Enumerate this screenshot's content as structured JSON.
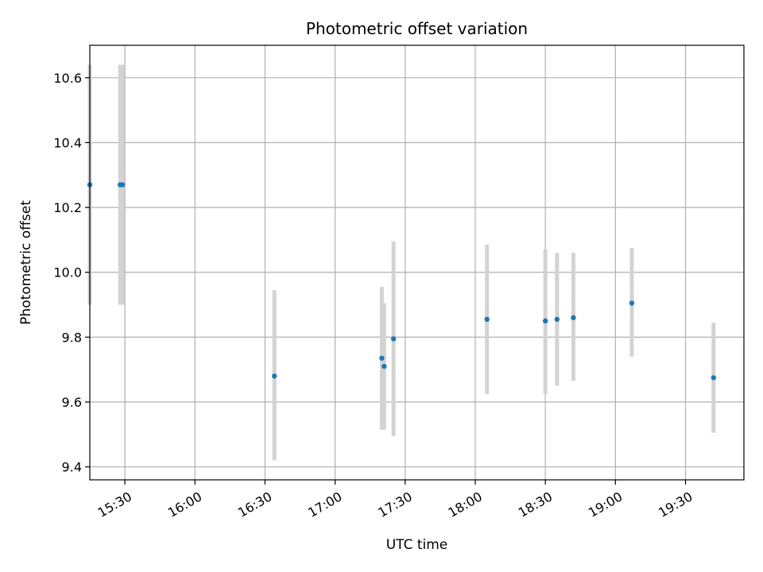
{
  "chart_data": {
    "type": "scatter",
    "title": "Photometric offset variation",
    "xlabel": "UTC time",
    "ylabel": "Photometric offset",
    "grid": true,
    "xlim": [
      "15:15",
      "19:55"
    ],
    "ylim": [
      9.36,
      10.7
    ],
    "x_ticks": [
      "15:30",
      "16:00",
      "16:30",
      "17:00",
      "17:30",
      "18:00",
      "18:30",
      "19:00",
      "19:30"
    ],
    "y_ticks": [
      "9.4",
      "9.6",
      "9.8",
      "10.0",
      "10.2",
      "10.4",
      "10.6"
    ],
    "colors": {
      "point": "#1f77b4",
      "errorbar": "#d3d3d3",
      "grid": "#b0b0b0"
    },
    "series": [
      {
        "points": [
          {
            "x": "15:15",
            "y": 10.27,
            "ylow": 9.9,
            "yhigh": 10.64
          },
          {
            "x": "15:28",
            "y": 10.27,
            "ylow": 9.9,
            "yhigh": 10.64
          },
          {
            "x": "15:29",
            "y": 10.27,
            "ylow": 9.9,
            "yhigh": 10.64
          },
          {
            "x": "16:34",
            "y": 9.68,
            "ylow": 9.42,
            "yhigh": 9.945
          },
          {
            "x": "17:20",
            "y": 9.735,
            "ylow": 9.515,
            "yhigh": 9.955
          },
          {
            "x": "17:21",
            "y": 9.71,
            "ylow": 9.515,
            "yhigh": 9.905
          },
          {
            "x": "17:25",
            "y": 9.795,
            "ylow": 9.495,
            "yhigh": 10.095
          },
          {
            "x": "18:05",
            "y": 9.855,
            "ylow": 9.625,
            "yhigh": 10.085
          },
          {
            "x": "18:30",
            "y": 9.85,
            "ylow": 9.625,
            "yhigh": 10.07
          },
          {
            "x": "18:35",
            "y": 9.855,
            "ylow": 9.65,
            "yhigh": 10.06
          },
          {
            "x": "18:42",
            "y": 9.86,
            "ylow": 9.665,
            "yhigh": 10.06
          },
          {
            "x": "19:07",
            "y": 9.905,
            "ylow": 9.74,
            "yhigh": 10.075
          },
          {
            "x": "19:42",
            "y": 9.675,
            "ylow": 9.505,
            "yhigh": 9.845
          }
        ]
      }
    ]
  }
}
